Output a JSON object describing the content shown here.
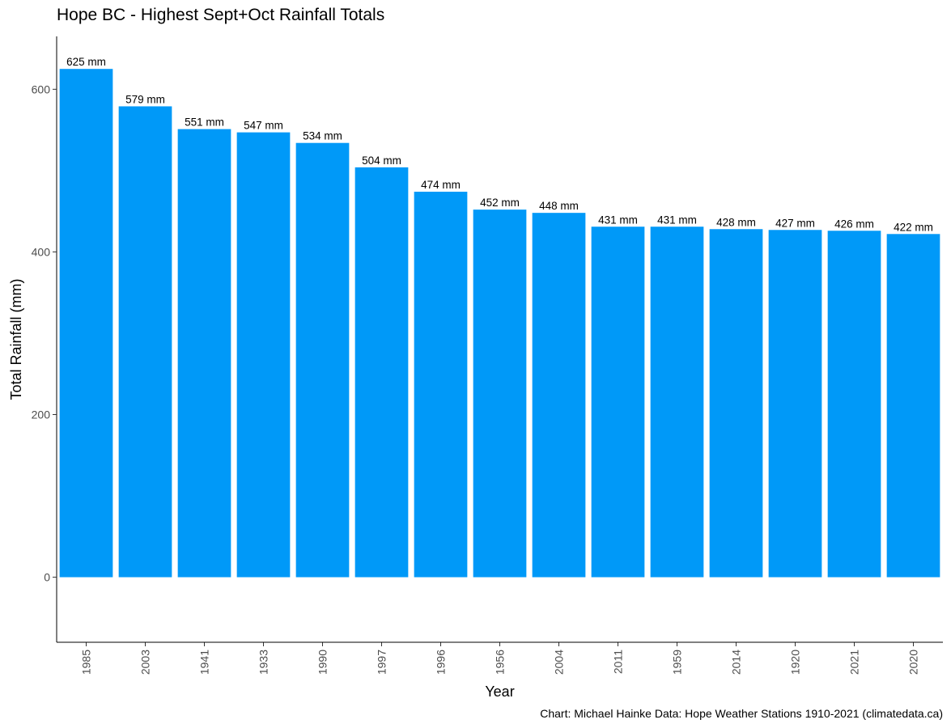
{
  "chart_data": {
    "type": "bar",
    "title": "Hope BC - Highest Sept+Oct Rainfall Totals",
    "caption": "Chart: Michael Hainke  Data: Hope Weather Stations 1910-2021 (climatedata.ca)",
    "xlabel": "Year",
    "ylabel": "Total Rainfall (mm)",
    "categories": [
      "1985",
      "2003",
      "1941",
      "1933",
      "1990",
      "1997",
      "1996",
      "1956",
      "2004",
      "2011",
      "1959",
      "2014",
      "1920",
      "2021",
      "2020"
    ],
    "values": [
      625,
      579,
      551,
      547,
      534,
      504,
      474,
      452,
      448,
      431,
      431,
      428,
      427,
      426,
      422
    ],
    "data_labels": [
      "625 mm",
      "579 mm",
      "551 mm",
      "547 mm",
      "534 mm",
      "504 mm",
      "474 mm",
      "452 mm",
      "448 mm",
      "431 mm",
      "431 mm",
      "428 mm",
      "427 mm",
      "426 mm",
      "422 mm"
    ],
    "ylim": [
      -80,
      665
    ],
    "yticks": [
      0,
      200,
      400,
      600
    ],
    "ytick_labels": [
      "0",
      "200",
      "400",
      "600"
    ],
    "bar_color": "#0099F8",
    "grid": false,
    "legend": "none"
  }
}
